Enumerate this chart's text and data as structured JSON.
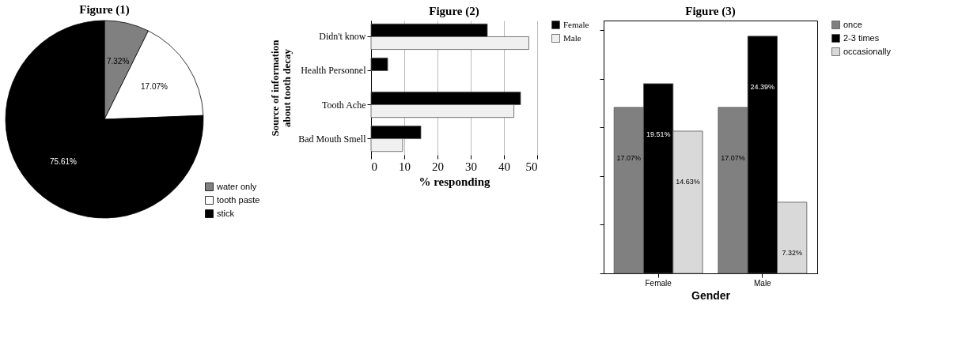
{
  "chart_data": [
    {
      "type": "pie",
      "title": "Figure (1)",
      "categories": [
        "water only",
        "tooth paste",
        "stick"
      ],
      "values": [
        7.32,
        17.07,
        75.61
      ],
      "colors": [
        "#808080",
        "#ffffff",
        "#000000"
      ],
      "value_labels": [
        "7.32%",
        "17.07%",
        "75.61%"
      ],
      "legend": "bottom right"
    },
    {
      "type": "bar",
      "orientation": "horizontal",
      "title": "Figure (2)",
      "categories": [
        "Didn't know",
        "Health Personnel",
        "Tooth Ache",
        "Bad  Mouth Smell"
      ],
      "ylabel": "Source of information about tooth decay",
      "xlabel": "% responding",
      "xlim": [
        0,
        50
      ],
      "xticks": [
        0,
        10,
        20,
        30,
        40,
        50
      ],
      "grid": "x",
      "legend": "right",
      "series": [
        {
          "name": "Female",
          "color": "#000000",
          "values": [
            35,
            5,
            45,
            15
          ]
        },
        {
          "name": "Male",
          "color": "#f0f0f0",
          "values": [
            47.5,
            null,
            43,
            9.5
          ]
        }
      ]
    },
    {
      "type": "bar",
      "title": "Figure (3)",
      "categories": [
        "Female",
        "Male"
      ],
      "xlabel": "Gender",
      "ylim": [
        0,
        26
      ],
      "yticks": [
        {
          "value": 0,
          "label": null
        },
        {
          "value": 5,
          "label": null
        },
        {
          "value": 10,
          "label": null
        },
        {
          "value": 15,
          "label": null
        },
        {
          "value": 20,
          "label": null
        },
        {
          "value": 25,
          "label": null
        }
      ],
      "tick_labels": "x",
      "legend": "top right",
      "series": [
        {
          "name": "once",
          "color": "#808080",
          "values": [
            17.07,
            17.07
          ],
          "value_labels": [
            "17.07%",
            "17.07%"
          ]
        },
        {
          "name": "2-3 times",
          "color": "#000000",
          "values": [
            19.51,
            24.39
          ],
          "value_labels": [
            "19.51%",
            "24.39%"
          ]
        },
        {
          "name": "occasionally",
          "color": "#d9d9d9",
          "values": [
            14.63,
            7.32
          ],
          "value_labels": [
            "14.63%",
            "7.32%"
          ]
        }
      ]
    }
  ]
}
